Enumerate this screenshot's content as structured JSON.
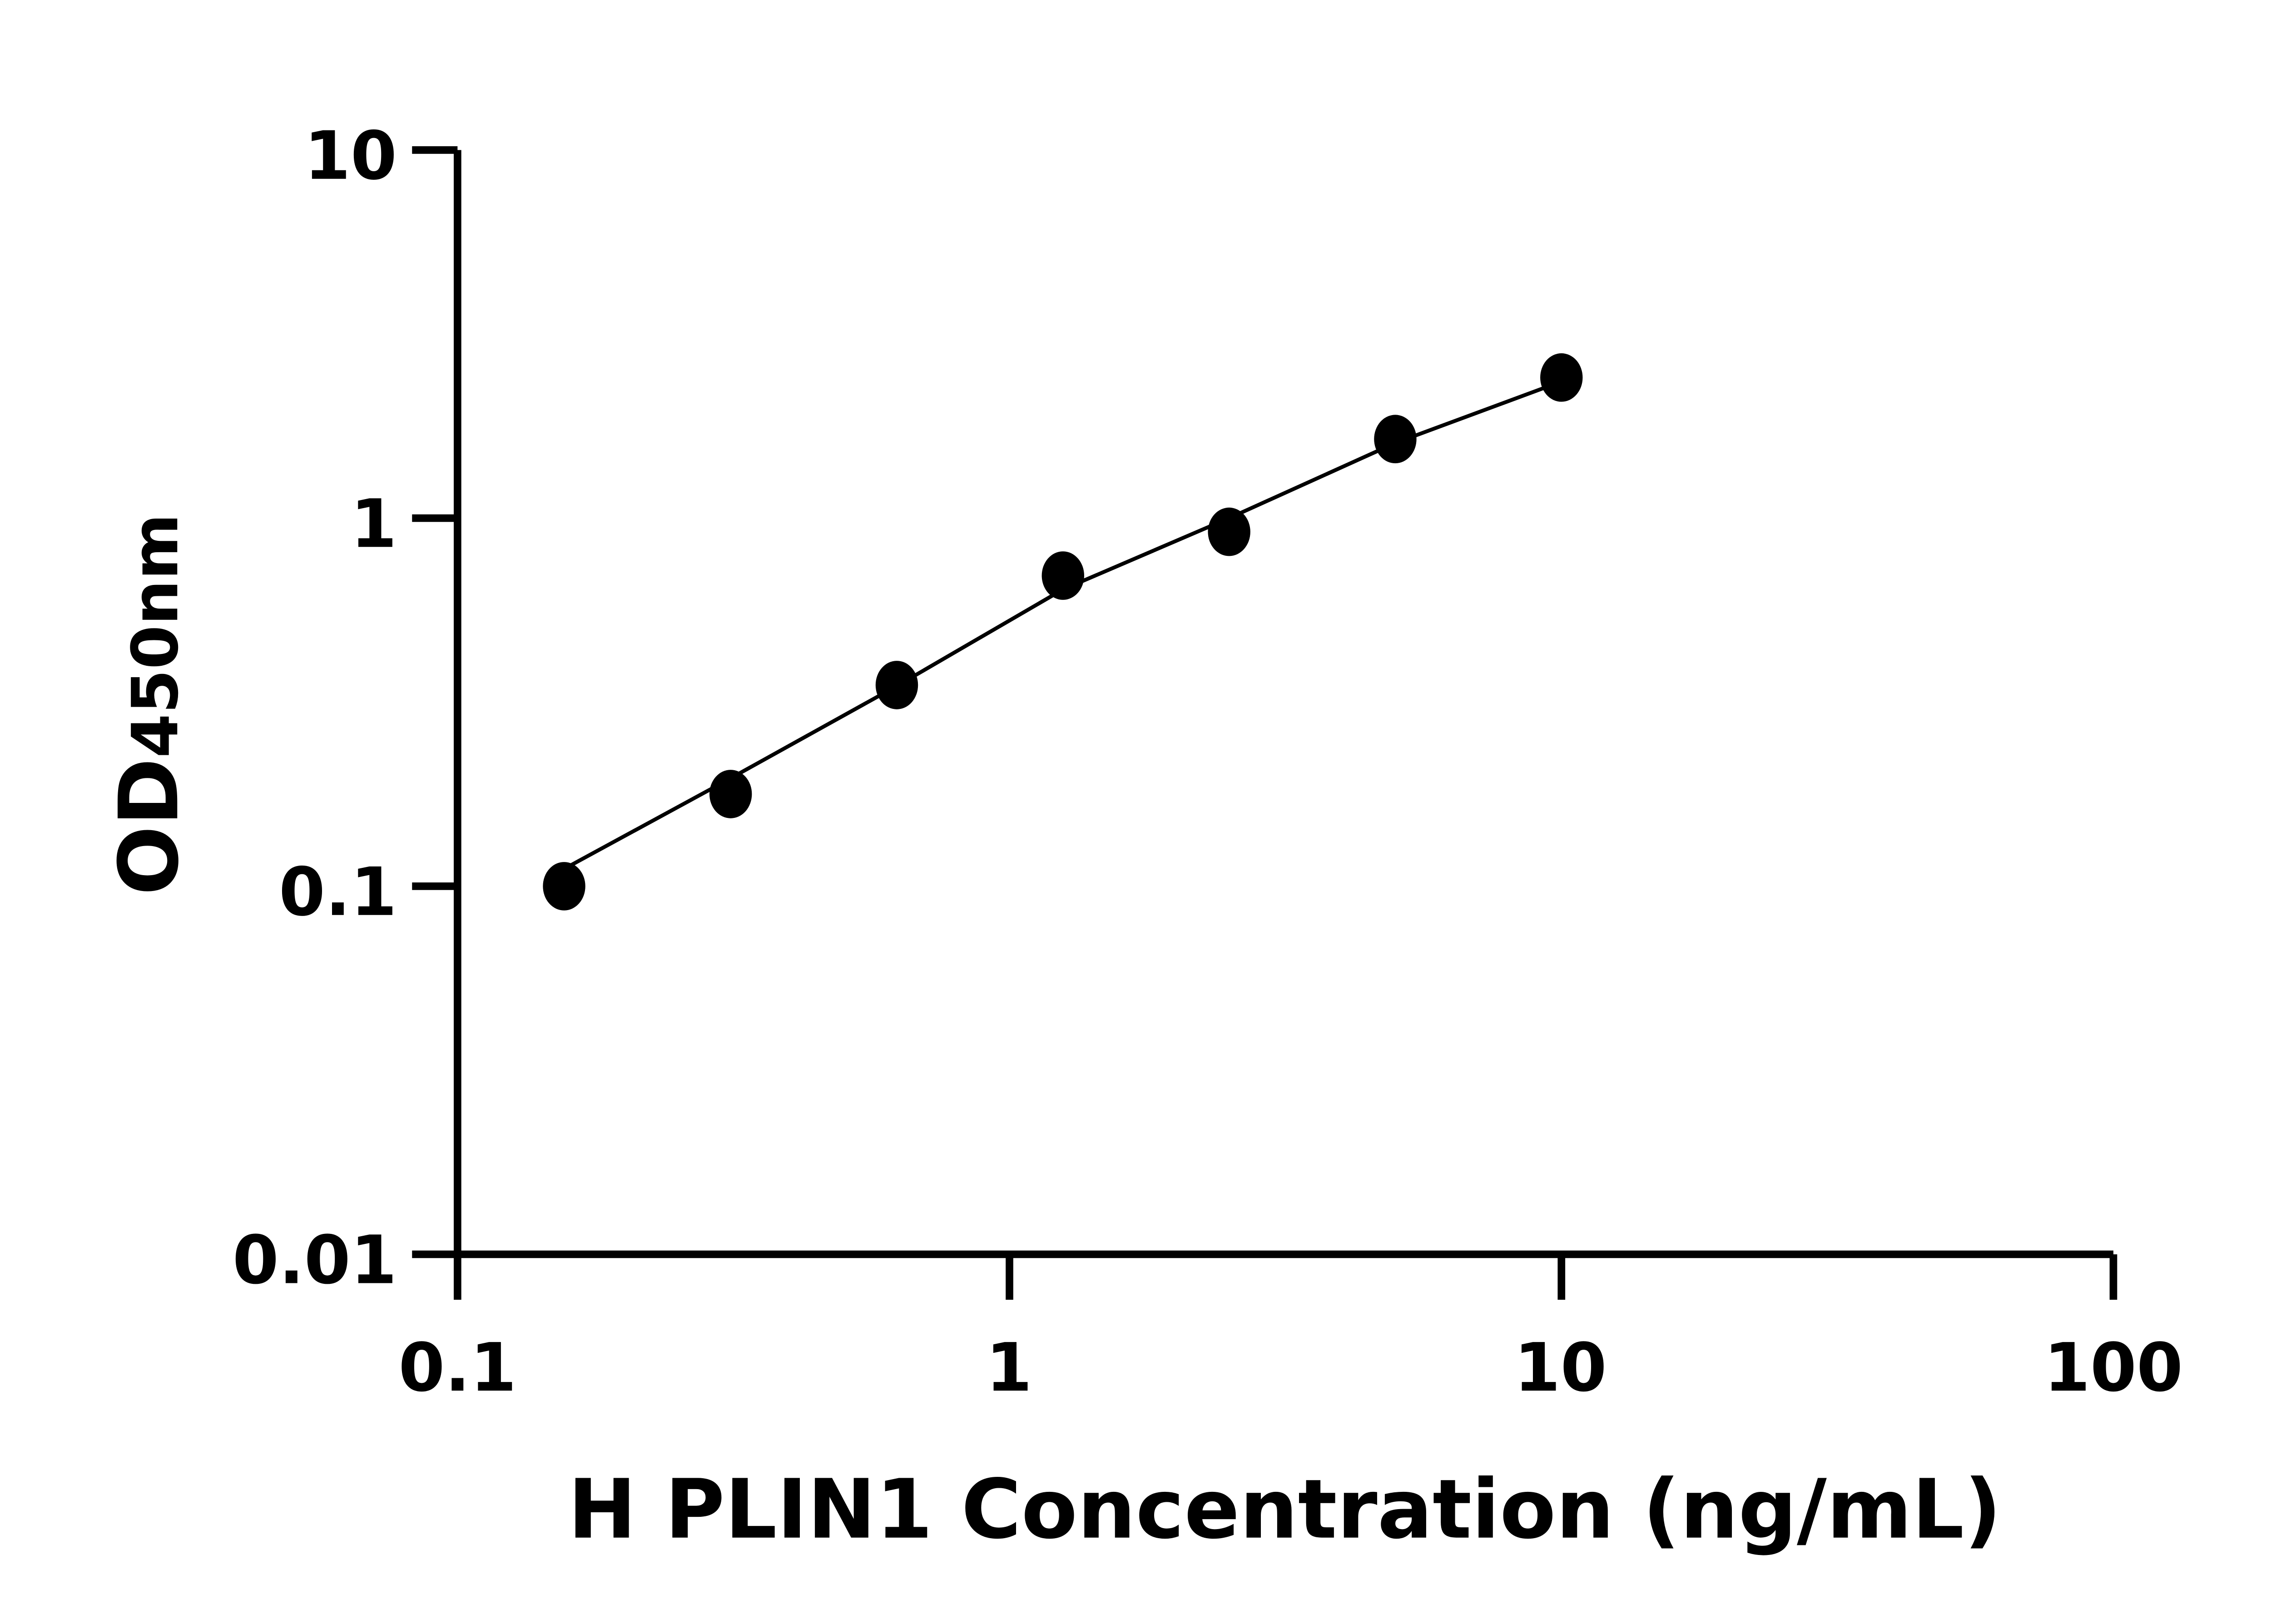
{
  "chart_data": {
    "type": "scatter",
    "title": "",
    "xlabel": "H PLIN1 Concentration (ng/mL)",
    "ylabel_main": "OD",
    "ylabel_sub": "450nm",
    "xscale": "log",
    "yscale": "log",
    "xlim": [
      0.1,
      100
    ],
    "ylim": [
      0.01,
      10
    ],
    "xticks": [
      "0.1",
      "1",
      "10",
      "100"
    ],
    "yticks": [
      "10",
      "1",
      "0.1",
      "0.01"
    ],
    "grid": false,
    "points": {
      "x": [
        0.156,
        0.3125,
        0.625,
        1.25,
        2.5,
        5,
        10
      ],
      "y": [
        0.1,
        0.178,
        0.352,
        0.698,
        0.918,
        1.64,
        2.41
      ]
    },
    "fit_curve": {
      "x": [
        0.15,
        0.3,
        0.625,
        1.25,
        2.5,
        5,
        10
      ],
      "y": [
        0.108,
        0.19,
        0.35,
        0.64,
        1.0,
        1.6,
        2.35
      ]
    },
    "colors": {
      "marker": "#000000",
      "line": "#000000",
      "axis": "#000000"
    }
  }
}
